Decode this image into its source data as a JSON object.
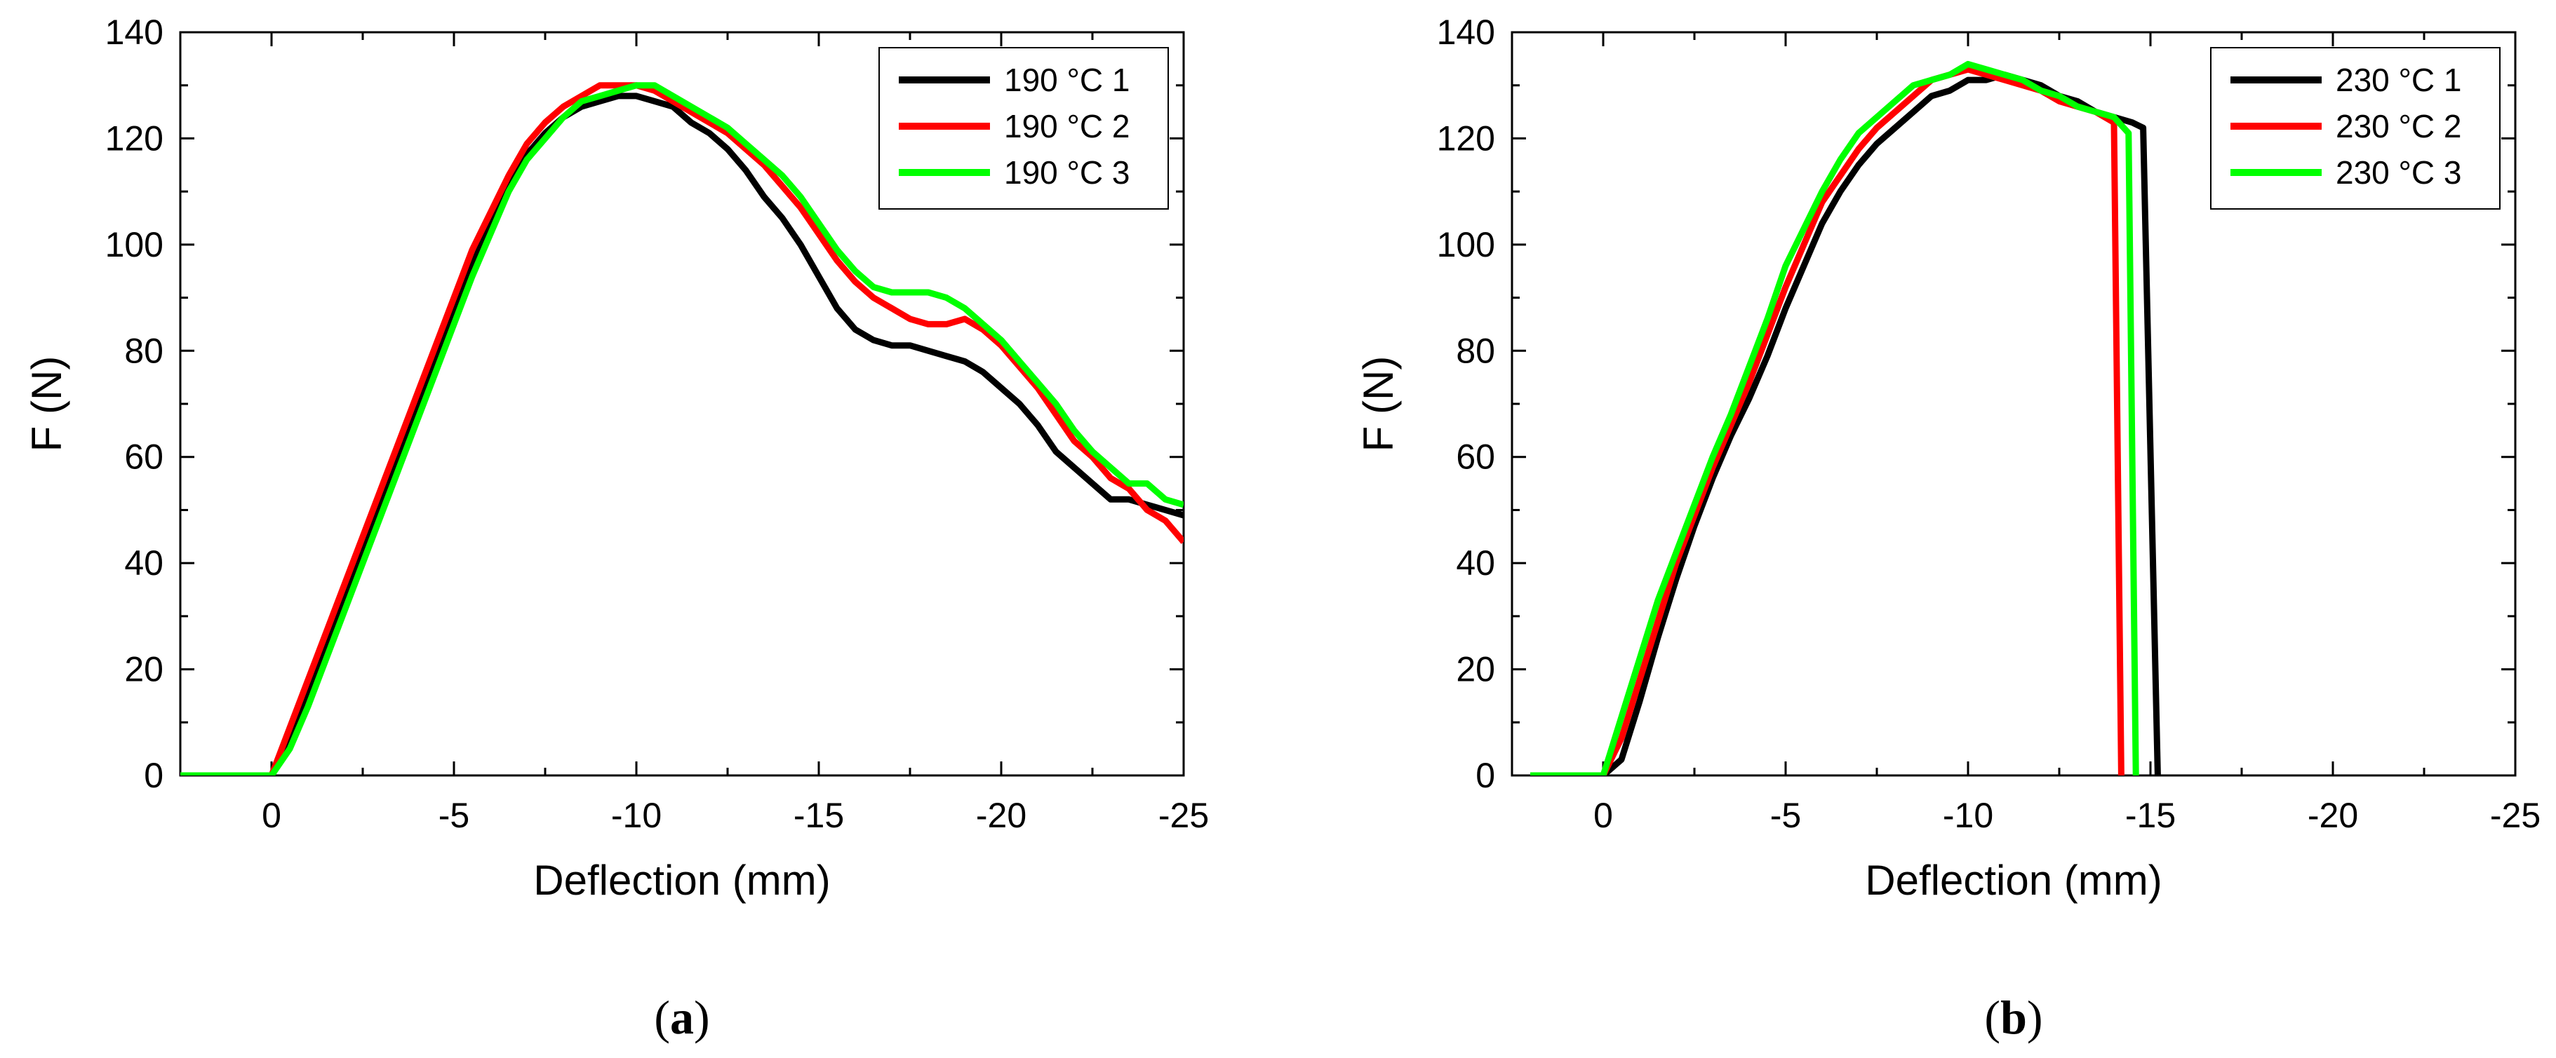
{
  "chart_data": [
    {
      "type": "line",
      "panel_label": "a",
      "title": "",
      "xlabel": "Deflection (mm)",
      "ylabel": "F (N)",
      "xlim": [
        2.5,
        -25
      ],
      "ylim": [
        0,
        140
      ],
      "xticks": [
        0,
        -5,
        -10,
        -15,
        -20,
        -25
      ],
      "xtick_labels": [
        "0",
        "-5",
        "-10",
        "-15",
        "-20",
        "-25"
      ],
      "yticks": [
        0,
        20,
        40,
        60,
        80,
        100,
        120,
        140
      ],
      "ytick_labels": [
        "0",
        "20",
        "40",
        "60",
        "80",
        "100",
        "120",
        "140"
      ],
      "grid": false,
      "legend_position": "top-right",
      "series": [
        {
          "name": "190 °C 1",
          "color": "#000000",
          "x": [
            2.5,
            0,
            -0.5,
            -1,
            -1.5,
            -2,
            -2.5,
            -3,
            -3.5,
            -4,
            -4.5,
            -5,
            -5.5,
            -6,
            -6.5,
            -7,
            -7.5,
            -8,
            -8.5,
            -9,
            -9.5,
            -10,
            -10.5,
            -11,
            -11.5,
            -12,
            -12.5,
            -13,
            -13.5,
            -14,
            -14.5,
            -15,
            -15.5,
            -16,
            -16.5,
            -17,
            -17.5,
            -18,
            -18.5,
            -19,
            -19.5,
            -20,
            -20.5,
            -21,
            -21.5,
            -22,
            -22.5,
            -23,
            -23.5,
            -24,
            -24.5,
            -25
          ],
          "y": [
            0,
            0,
            6,
            15,
            24,
            33,
            42,
            51,
            60,
            69,
            78,
            87,
            96,
            104,
            111,
            117,
            121,
            124,
            126,
            127,
            128,
            128,
            127,
            126,
            123,
            121,
            118,
            114,
            109,
            105,
            100,
            94,
            88,
            84,
            82,
            81,
            81,
            80,
            79,
            78,
            76,
            73,
            70,
            66,
            61,
            58,
            55,
            52,
            52,
            51,
            50,
            49
          ]
        },
        {
          "name": "190 °C 2",
          "color": "#ff0000",
          "x": [
            2.5,
            0,
            -0.5,
            -1,
            -1.5,
            -2,
            -2.5,
            -3,
            -3.5,
            -4,
            -4.5,
            -5,
            -5.5,
            -6,
            -6.5,
            -7,
            -7.5,
            -8,
            -8.5,
            -9,
            -9.5,
            -10,
            -10.5,
            -11,
            -11.5,
            -12,
            -12.5,
            -13,
            -13.5,
            -14,
            -14.5,
            -15,
            -15.5,
            -16,
            -16.5,
            -17,
            -17.5,
            -18,
            -18.5,
            -19,
            -19.5,
            -20,
            -20.5,
            -21,
            -21.5,
            -22,
            -22.5,
            -23,
            -23.5,
            -24,
            -24.5,
            -25
          ],
          "y": [
            0,
            0,
            9,
            18,
            27,
            36,
            45,
            54,
            63,
            72,
            81,
            90,
            99,
            106,
            113,
            119,
            123,
            126,
            128,
            130,
            130,
            130,
            129,
            127,
            125,
            123,
            121,
            118,
            115,
            111,
            107,
            102,
            97,
            93,
            90,
            88,
            86,
            85,
            85,
            86,
            84,
            81,
            77,
            73,
            68,
            63,
            60,
            56,
            54,
            50,
            48,
            44
          ]
        },
        {
          "name": "190 °C 3",
          "color": "#00ff00",
          "x": [
            2.5,
            0,
            -0.5,
            -1,
            -1.5,
            -2,
            -2.5,
            -3,
            -3.5,
            -4,
            -4.5,
            -5,
            -5.5,
            -6,
            -6.5,
            -7,
            -7.5,
            -8,
            -8.5,
            -9,
            -9.5,
            -10,
            -10.5,
            -11,
            -11.5,
            -12,
            -12.5,
            -13,
            -13.5,
            -14,
            -14.5,
            -15,
            -15.5,
            -16,
            -16.5,
            -17,
            -17.5,
            -18,
            -18.5,
            -19,
            -19.5,
            -20,
            -20.5,
            -21,
            -21.5,
            -22,
            -22.5,
            -23,
            -23.5,
            -24,
            -24.5,
            -25
          ],
          "y": [
            0,
            0,
            5,
            13,
            22,
            31,
            40,
            49,
            58,
            67,
            76,
            85,
            94,
            102,
            110,
            116,
            120,
            124,
            127,
            128,
            129,
            130,
            130,
            128,
            126,
            124,
            122,
            119,
            116,
            113,
            109,
            104,
            99,
            95,
            92,
            91,
            91,
            91,
            90,
            88,
            85,
            82,
            78,
            74,
            70,
            65,
            61,
            58,
            55,
            55,
            52,
            51
          ]
        }
      ]
    },
    {
      "type": "line",
      "panel_label": "b",
      "title": "",
      "xlabel": "Deflection (mm)",
      "ylabel": "F (N)",
      "xlim": [
        2.5,
        -25
      ],
      "ylim": [
        0,
        140
      ],
      "xticks": [
        0,
        -5,
        -10,
        -15,
        -20,
        -25
      ],
      "xtick_labels": [
        "0",
        "-5",
        "-10",
        "-15",
        "-20",
        "-25"
      ],
      "yticks": [
        0,
        20,
        40,
        60,
        80,
        100,
        120,
        140
      ],
      "ytick_labels": [
        "0",
        "20",
        "40",
        "60",
        "80",
        "100",
        "120",
        "140"
      ],
      "grid": false,
      "legend_position": "top-right",
      "series": [
        {
          "name": "230 °C 1",
          "color": "#000000",
          "x": [
            2,
            0,
            -0.5,
            -1,
            -1.5,
            -2,
            -2.5,
            -3,
            -3.5,
            -4,
            -4.5,
            -5,
            -5.5,
            -6,
            -6.5,
            -7,
            -7.5,
            -8,
            -8.5,
            -9,
            -9.5,
            -10,
            -10.5,
            -11,
            -11.5,
            -12,
            -12.5,
            -13,
            -13.5,
            -14,
            -14.5,
            -14.8,
            -15.2,
            -15.2
          ],
          "y": [
            0,
            0,
            3,
            14,
            26,
            37,
            47,
            56,
            64,
            71,
            79,
            88,
            96,
            104,
            110,
            115,
            119,
            122,
            125,
            128,
            129,
            131,
            131,
            132,
            131,
            130,
            128,
            127,
            125,
            124,
            123,
            122,
            0,
            0
          ]
        },
        {
          "name": "230 °C 2",
          "color": "#ff0000",
          "x": [
            2,
            0,
            -0.5,
            -1,
            -1.5,
            -2,
            -2.5,
            -3,
            -3.5,
            -4,
            -4.5,
            -5,
            -5.5,
            -6,
            -6.5,
            -7,
            -7.5,
            -8,
            -8.5,
            -9,
            -9.5,
            -10,
            -10.5,
            -11,
            -11.5,
            -12,
            -12.5,
            -13,
            -13.5,
            -14,
            -14.2,
            -14.2
          ],
          "y": [
            0,
            0,
            7,
            18,
            29,
            40,
            49,
            58,
            66,
            74,
            83,
            92,
            100,
            108,
            113,
            118,
            122,
            125,
            128,
            131,
            132,
            133,
            132,
            131,
            130,
            129,
            127,
            126,
            125,
            123,
            0,
            0
          ]
        },
        {
          "name": "230 °C 3",
          "color": "#00ff00",
          "x": [
            2,
            0,
            -0.5,
            -1,
            -1.5,
            -2,
            -2.5,
            -3,
            -3.5,
            -4,
            -4.5,
            -5,
            -5.5,
            -6,
            -6.5,
            -7,
            -7.5,
            -8,
            -8.5,
            -9,
            -9.5,
            -10,
            -10.5,
            -11,
            -11.5,
            -12,
            -12.5,
            -13,
            -13.5,
            -14,
            -14.4,
            -14.6,
            -14.6
          ],
          "y": [
            0,
            0,
            11,
            22,
            33,
            42,
            51,
            60,
            68,
            77,
            86,
            96,
            103,
            110,
            116,
            121,
            124,
            127,
            130,
            131,
            132,
            134,
            133,
            132,
            131,
            129,
            128,
            126,
            125,
            124,
            121,
            0,
            0
          ]
        }
      ]
    }
  ]
}
